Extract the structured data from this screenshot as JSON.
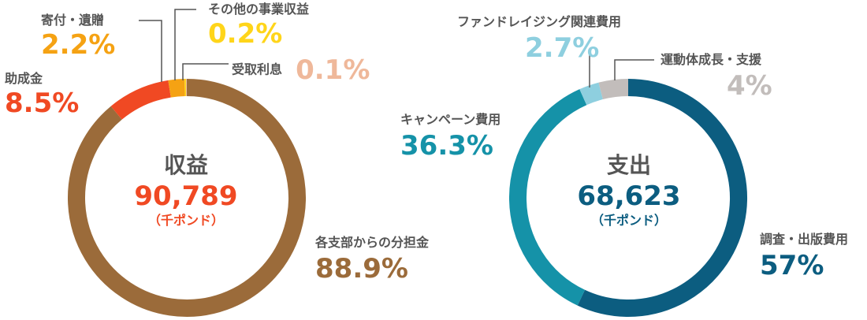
{
  "chart_data": [
    {
      "type": "pie",
      "title": "収益",
      "total": "90,789",
      "unit": "（千ポンド）",
      "total_color": "#f04923",
      "slices": [
        {
          "label": "各支部からの分担金",
          "display": "88.9%",
          "value": 88.9,
          "color": "#9b6b3a"
        },
        {
          "label": "助成金",
          "display": "8.5%",
          "value": 8.5,
          "color": "#f04923"
        },
        {
          "label": "寄付・遺贈",
          "display": "2.2%",
          "value": 2.2,
          "color": "#f5a213"
        },
        {
          "label": "その他の事業収益",
          "display": "0.2%",
          "value": 0.2,
          "color": "#ffd51a"
        },
        {
          "label": "受取利息",
          "display": "0.1%",
          "value": 0.1,
          "color": "#efb89a"
        }
      ]
    },
    {
      "type": "pie",
      "title": "支出",
      "total": "68,623",
      "unit": "（千ポンド）",
      "total_color": "#0c5d80",
      "slices": [
        {
          "label": "調査・出版費用",
          "display": "57%",
          "value": 57,
          "color": "#0c5d80"
        },
        {
          "label": "キャンペーン費用",
          "display": "36.3%",
          "value": 36.3,
          "color": "#1592a8"
        },
        {
          "label": "ファンドレイジング関連費用",
          "display": "2.7%",
          "value": 2.7,
          "color": "#8ecfdf"
        },
        {
          "label": "運動体成長・支援",
          "display": "4%",
          "value": 4,
          "color": "#c2bdbb"
        }
      ]
    }
  ]
}
